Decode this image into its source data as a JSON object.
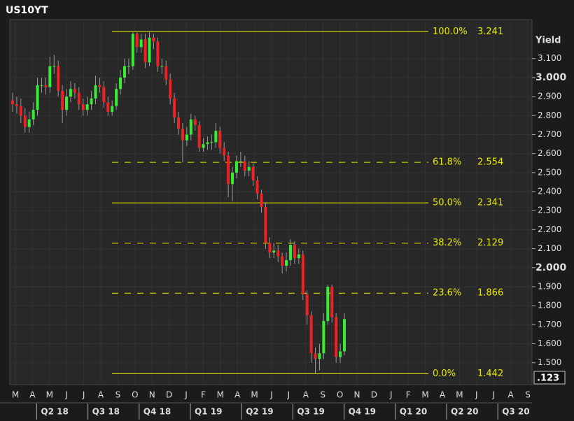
{
  "chart_data": {
    "type": "candlestick",
    "title": "US10YT",
    "y_axis_label": "Yield",
    "last_label": ".123",
    "categories": [
      "M",
      "A",
      "M",
      "J",
      "J",
      "A",
      "S",
      "O",
      "N",
      "D",
      "J",
      "F",
      "M",
      "A",
      "M",
      "J",
      "J",
      "A",
      "S",
      "O",
      "N",
      "D",
      "J",
      "F",
      "M",
      "A",
      "M",
      "J",
      "J",
      "A",
      "S"
    ],
    "quarters": [
      "Q2 18",
      "Q3 18",
      "Q4 18",
      "Q1 19",
      "Q2 19",
      "Q3 19",
      "Q4 19",
      "Q1 20",
      "Q2 20",
      "Q3 20"
    ],
    "up_color": "#33ee33",
    "down_color": "#ee2222",
    "open": [
      2.88,
      2.86,
      2.85,
      2.8,
      2.74,
      2.78,
      2.83,
      2.96,
      2.96,
      2.95,
      3.06,
      3.06,
      2.93,
      2.83,
      2.9,
      2.94,
      2.92,
      2.86,
      2.83,
      2.86,
      2.89,
      2.96,
      2.95,
      2.87,
      2.82,
      2.85,
      2.94,
      3.0,
      3.06,
      3.06,
      3.23,
      3.16,
      3.2,
      3.08,
      3.21,
      3.19,
      3.06,
      3.06,
      2.99,
      2.89,
      2.79,
      2.73,
      2.67,
      2.7,
      2.78,
      2.75,
      2.63,
      2.65,
      2.66,
      2.66,
      2.72,
      2.63,
      2.59,
      2.44,
      2.5,
      2.56,
      2.56,
      2.51,
      2.53,
      2.46,
      2.39,
      2.32,
      2.13,
      2.08,
      2.09,
      2.06,
      2.01,
      2.04,
      2.12,
      2.05,
      2.07,
      1.86,
      1.75,
      1.55,
      1.52,
      1.55,
      1.72,
      1.9,
      1.74,
      1.53,
      1.56
    ],
    "high": [
      2.92,
      2.9,
      2.89,
      2.84,
      2.82,
      2.87,
      3.0,
      3.0,
      3.0,
      3.11,
      3.12,
      3.09,
      2.96,
      2.94,
      2.98,
      2.97,
      2.95,
      2.89,
      2.9,
      2.93,
      3.01,
      3.0,
      2.98,
      2.9,
      2.88,
      2.97,
      3.04,
      3.1,
      3.1,
      3.24,
      3.241,
      3.23,
      3.23,
      3.241,
      3.23,
      3.21,
      3.1,
      3.09,
      3.02,
      2.92,
      2.82,
      2.76,
      2.74,
      2.81,
      2.8,
      2.77,
      2.68,
      2.69,
      2.7,
      2.76,
      2.74,
      2.66,
      2.61,
      2.53,
      2.59,
      2.61,
      2.59,
      2.56,
      2.55,
      2.48,
      2.41,
      2.34,
      2.16,
      2.13,
      2.12,
      2.08,
      2.08,
      2.15,
      2.14,
      2.1,
      2.09,
      1.88,
      1.77,
      1.58,
      1.6,
      1.76,
      1.91,
      1.91,
      1.76,
      1.6,
      1.76
    ],
    "low": [
      2.82,
      2.81,
      2.76,
      2.71,
      2.71,
      2.75,
      2.8,
      2.92,
      2.91,
      2.92,
      3.02,
      2.9,
      2.76,
      2.8,
      2.87,
      2.89,
      2.83,
      2.8,
      2.8,
      2.83,
      2.86,
      2.92,
      2.84,
      2.8,
      2.8,
      2.83,
      2.91,
      2.97,
      3.02,
      3.04,
      3.13,
      3.13,
      3.05,
      3.06,
      3.15,
      3.03,
      3.02,
      2.96,
      2.86,
      2.76,
      2.7,
      2.554,
      2.64,
      2.67,
      2.72,
      2.61,
      2.61,
      2.62,
      2.62,
      2.63,
      2.6,
      2.56,
      2.37,
      2.35,
      2.47,
      2.53,
      2.48,
      2.48,
      2.43,
      2.36,
      2.29,
      2.1,
      2.05,
      2.05,
      2.03,
      1.97,
      1.98,
      2.01,
      2.02,
      2.02,
      1.83,
      1.7,
      1.5,
      1.442,
      1.46,
      1.52,
      1.7,
      1.71,
      1.5,
      1.5,
      1.54
    ],
    "close": [
      2.86,
      2.85,
      2.8,
      2.74,
      2.78,
      2.83,
      2.96,
      2.96,
      2.95,
      3.06,
      3.06,
      2.93,
      2.83,
      2.9,
      2.94,
      2.92,
      2.86,
      2.83,
      2.86,
      2.89,
      2.96,
      2.95,
      2.87,
      2.82,
      2.85,
      2.94,
      3.0,
      3.06,
      3.06,
      3.23,
      3.16,
      3.2,
      3.08,
      3.21,
      3.19,
      3.06,
      3.06,
      2.99,
      2.89,
      2.79,
      2.73,
      2.67,
      2.7,
      2.78,
      2.75,
      2.63,
      2.65,
      2.66,
      2.66,
      2.72,
      2.63,
      2.59,
      2.44,
      2.5,
      2.56,
      2.56,
      2.51,
      2.53,
      2.46,
      2.39,
      2.32,
      2.13,
      2.08,
      2.09,
      2.06,
      2.01,
      2.04,
      2.12,
      2.05,
      2.07,
      1.86,
      1.75,
      1.55,
      1.52,
      1.55,
      1.72,
      1.9,
      1.74,
      1.53,
      1.56,
      1.73
    ],
    "fib_levels": [
      {
        "label": "100.0%",
        "value": 3.241,
        "style": "solid"
      },
      {
        "label": "61.8%",
        "value": 2.554,
        "style": "dashed"
      },
      {
        "label": "50.0%",
        "value": 2.341,
        "style": "solid"
      },
      {
        "label": "38.2%",
        "value": 2.129,
        "style": "dashed"
      },
      {
        "label": "23.6%",
        "value": 1.866,
        "style": "dashed"
      },
      {
        "label": "0.0%",
        "value": 1.442,
        "style": "solid"
      }
    ],
    "fib_color": "#e8e800",
    "ylim": [
      1.385,
      3.305
    ],
    "yticks": [
      {
        "value": 1.5,
        "label": "1.500"
      },
      {
        "value": 1.6,
        "label": "1.600"
      },
      {
        "value": 1.7,
        "label": "1.700"
      },
      {
        "value": 1.8,
        "label": "1.800"
      },
      {
        "value": 1.9,
        "label": "1.900"
      },
      {
        "value": 2,
        "label": "2.000"
      },
      {
        "value": 2.1,
        "label": "2.100"
      },
      {
        "value": 2.2,
        "label": "2.200"
      },
      {
        "value": 2.3,
        "label": "2.300"
      },
      {
        "value": 2.4,
        "label": "2.400"
      },
      {
        "value": 2.5,
        "label": "2.500"
      },
      {
        "value": 2.6,
        "label": "2.600"
      },
      {
        "value": 2.7,
        "label": "2.700"
      },
      {
        "value": 2.8,
        "label": "2.800"
      },
      {
        "value": 2.9,
        "label": "2.900"
      },
      {
        "value": 3,
        "label": "3.000"
      },
      {
        "value": 3.1,
        "label": "3.100"
      }
    ]
  }
}
